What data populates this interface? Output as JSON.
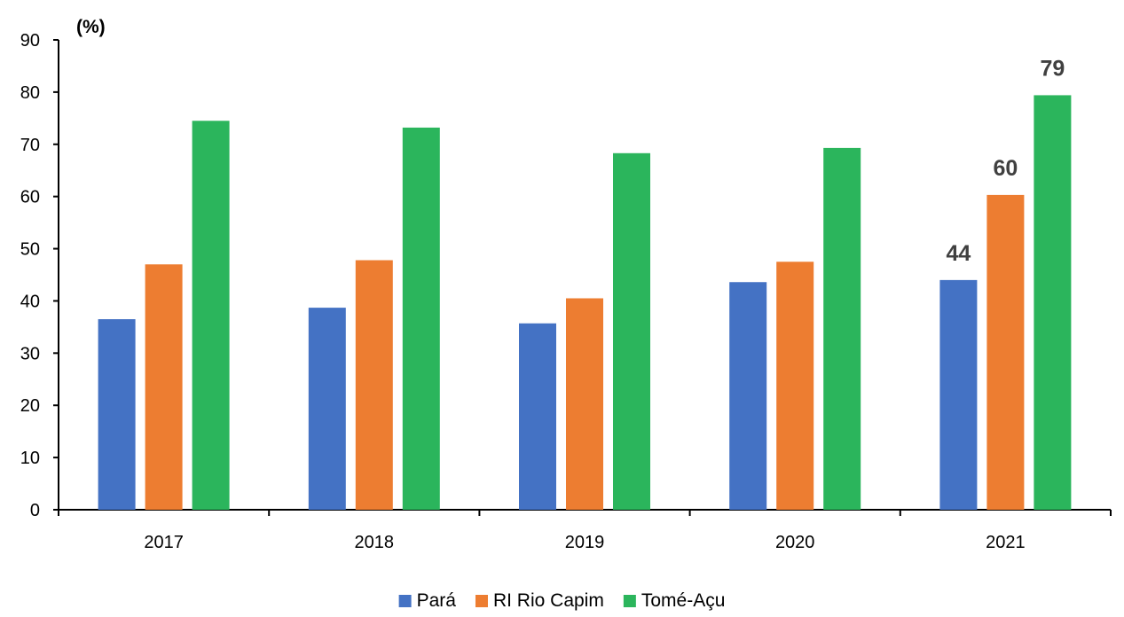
{
  "chart_data": {
    "type": "bar",
    "title": "",
    "xlabel": "",
    "ylabel": "",
    "unit_label": "(%)",
    "categories": [
      "2017",
      "2018",
      "2019",
      "2020",
      "2021"
    ],
    "series": [
      {
        "name": "Pará",
        "color": "#4472C4",
        "values": [
          36.5,
          38.7,
          35.7,
          43.6,
          44.0
        ]
      },
      {
        "name": "RI Rio Capim",
        "color": "#ED7D31",
        "values": [
          47.0,
          47.8,
          40.5,
          47.5,
          60.3
        ]
      },
      {
        "name": "Tomé-Açu",
        "color": "#2BB55C",
        "values": [
          74.5,
          73.2,
          68.3,
          69.3,
          79.4
        ]
      }
    ],
    "data_labels": [
      {
        "series": 0,
        "category": 4,
        "text": "44"
      },
      {
        "series": 1,
        "category": 4,
        "text": "60"
      },
      {
        "series": 2,
        "category": 4,
        "text": "79"
      }
    ],
    "ylim": [
      0,
      90
    ],
    "yticks": [
      "0",
      "10",
      "20",
      "30",
      "40",
      "50",
      "60",
      "70",
      "80",
      "90"
    ],
    "grid": false,
    "legend_position": "bottom"
  }
}
